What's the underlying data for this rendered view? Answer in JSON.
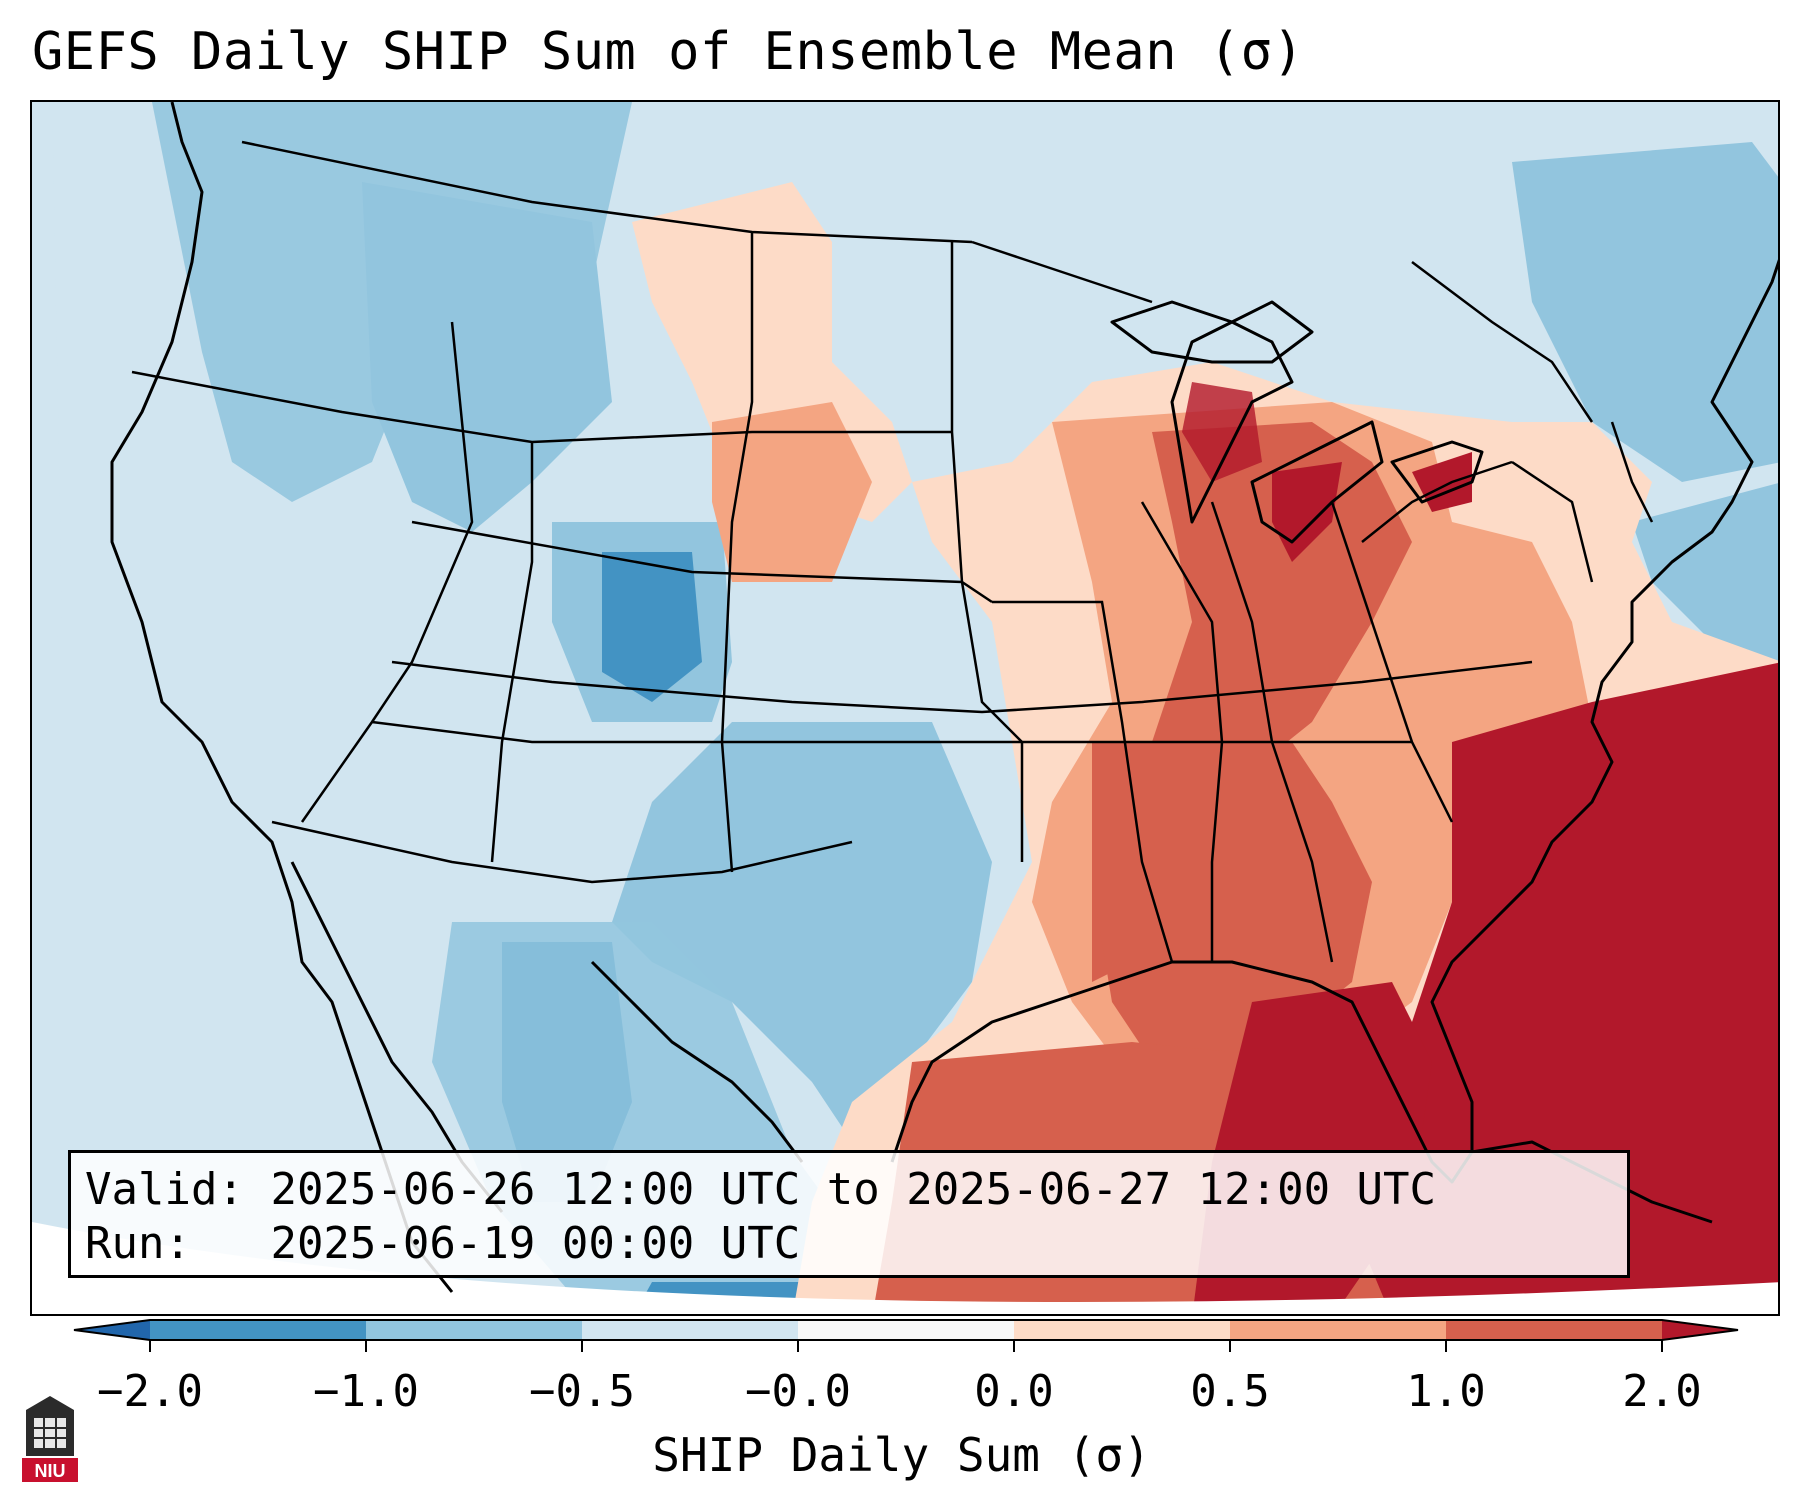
{
  "title": "GEFS Daily SHIP Sum of Ensemble Mean (σ)",
  "info": {
    "valid_label": "Valid:",
    "valid_value": "2025-06-26 12:00 UTC to 2025-06-27 12:00 UTC",
    "run_label": "Run:",
    "run_value": "2025-06-19 00:00 UTC"
  },
  "colorbar": {
    "label": "SHIP Daily Sum (σ)",
    "ticks": [
      "−2.0",
      "−1.0",
      "−0.5",
      "−0.0",
      "0.0",
      "0.5",
      "1.0",
      "2.0"
    ],
    "colors": [
      "#4393c3",
      "#92c5de",
      "#d1e5f0",
      "#f7f7f7",
      "#fddbc7",
      "#f4a582",
      "#d6604d",
      "#b2182b"
    ],
    "under_color": "#2166ac",
    "over_color": "#b2182b"
  },
  "logo": {
    "text": "NIU"
  }
}
